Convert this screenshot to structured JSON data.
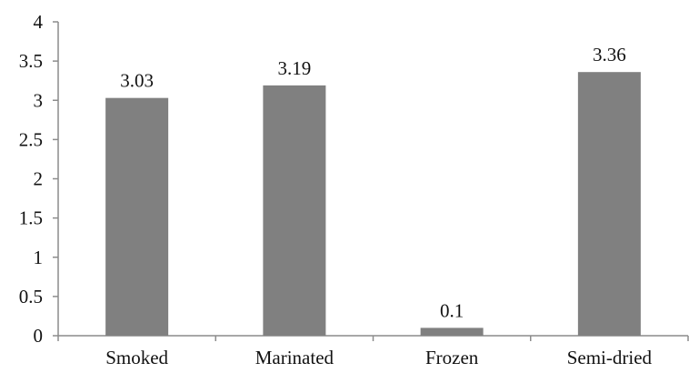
{
  "chart_data": {
    "type": "bar",
    "categories": [
      "Smoked",
      "Marinated",
      "Frozen",
      "Semi-dried"
    ],
    "values": [
      3.03,
      3.19,
      0.1,
      3.36
    ],
    "data_labels": [
      "3.03",
      "3.19",
      "0.1",
      "3.36"
    ],
    "title": "",
    "xlabel": "",
    "ylabel": "",
    "ylim": [
      0,
      4
    ],
    "yticks": [
      "0",
      "0.5",
      "1",
      "1.5",
      "2",
      "2.5",
      "3",
      "3.5",
      "4"
    ],
    "grid": false,
    "legend": "none",
    "colors": {
      "bar": "#808080",
      "axis": "#8c8c8c",
      "text": "#111111"
    }
  }
}
